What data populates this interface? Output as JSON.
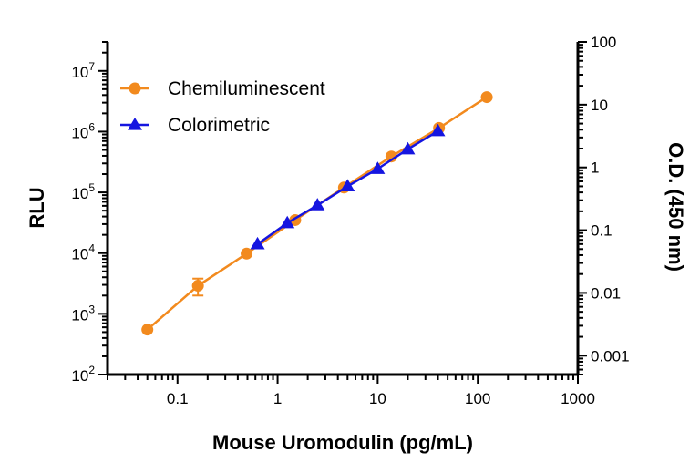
{
  "chart_data": {
    "type": "line",
    "xlabel": "Mouse Uromodulin (pg/mL)",
    "ylabel": "RLU",
    "y2label": "O.D. (450 nm)",
    "x_scale": "log",
    "y_scale": "log",
    "y2_scale": "log",
    "xlim": [
      0.02,
      1000
    ],
    "ylim": [
      100,
      30000000
    ],
    "y2lim": [
      0.0005,
      100
    ],
    "x_ticks": [
      0.1,
      1,
      10,
      100,
      1000
    ],
    "x_tick_labels": [
      "0.1",
      "1",
      "10",
      "100",
      "1000"
    ],
    "y_ticks": [
      {
        "base": "10",
        "exp": "2",
        "value": 100
      },
      {
        "base": "10",
        "exp": "3",
        "value": 1000
      },
      {
        "base": "10",
        "exp": "4",
        "value": 10000
      },
      {
        "base": "10",
        "exp": "5",
        "value": 100000
      },
      {
        "base": "10",
        "exp": "6",
        "value": 1000000
      },
      {
        "base": "10",
        "exp": "7",
        "value": 10000000
      }
    ],
    "y2_ticks": [
      0.001,
      0.01,
      0.1,
      1,
      10,
      100
    ],
    "y2_tick_labels": [
      "0.001",
      "0.01",
      "0.1",
      "1",
      "10",
      "100"
    ],
    "legend_position": "top-left",
    "grid": false,
    "series": [
      {
        "name": "Chemiluminescent",
        "axis": "left",
        "marker": "circle",
        "color": "#F28A1E",
        "x": [
          0.05,
          0.16,
          0.49,
          1.5,
          4.6,
          13.7,
          41,
          123
        ],
        "y": [
          550,
          2900,
          9800,
          35000,
          120000,
          390000,
          1150000,
          3700000
        ],
        "error": [
          null,
          900,
          null,
          null,
          null,
          null,
          null,
          null
        ]
      },
      {
        "name": "Colorimetric",
        "axis": "right",
        "marker": "triangle",
        "color": "#1515E0",
        "x": [
          0.63,
          1.25,
          2.5,
          5,
          10,
          20,
          40
        ],
        "y": [
          0.06,
          0.13,
          0.25,
          0.5,
          0.95,
          1.95,
          3.8
        ]
      }
    ]
  }
}
